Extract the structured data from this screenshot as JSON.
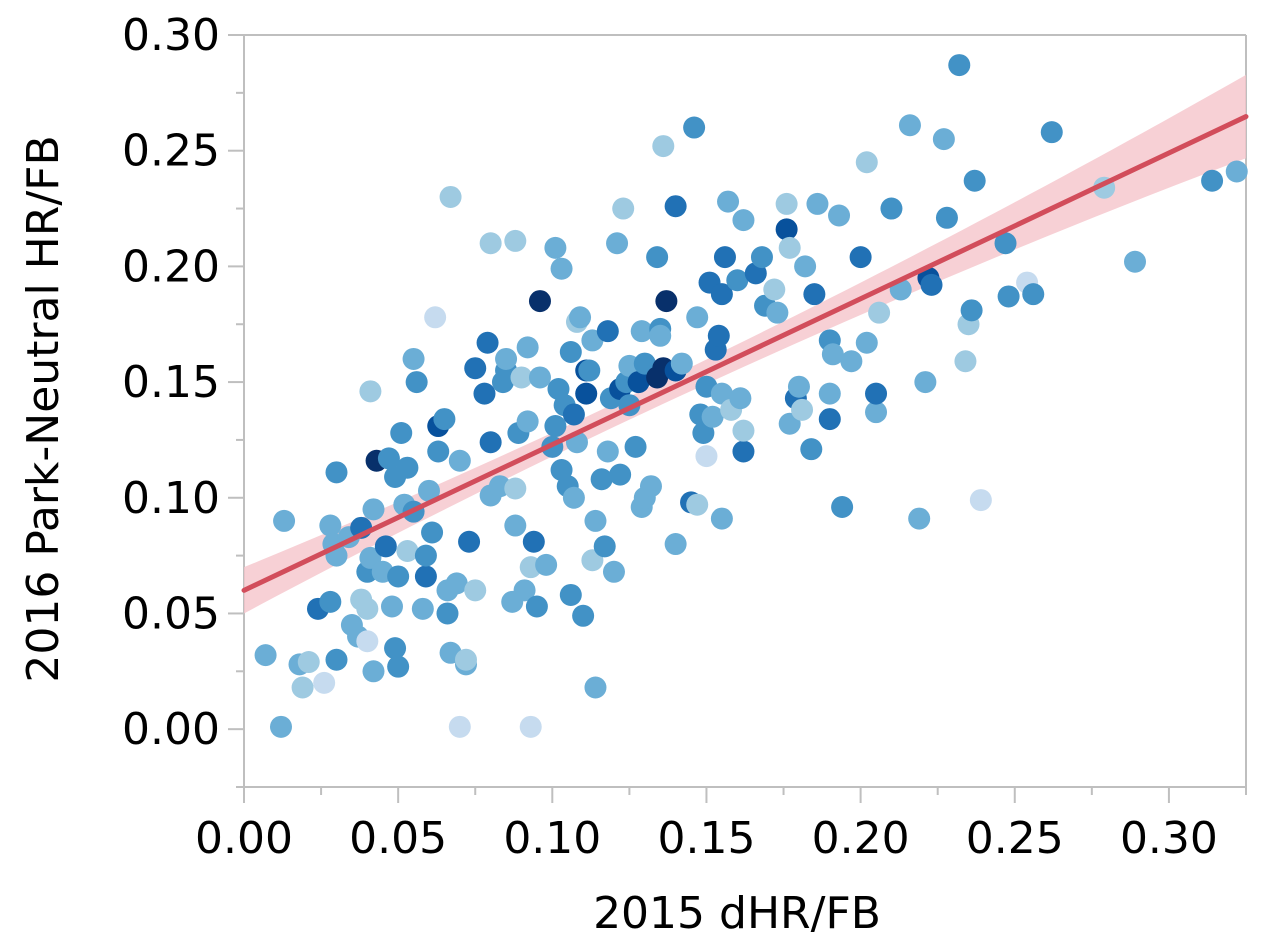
{
  "chart_data": {
    "type": "scatter",
    "xlabel": "2015 dHR/FB",
    "ylabel": "2016 Park-Neutral HR/FB",
    "xlim": [
      0.0,
      0.325
    ],
    "ylim": [
      -0.025,
      0.3
    ],
    "xticks": [
      "0.00",
      "0.05",
      "0.10",
      "0.15",
      "0.20",
      "0.25",
      "0.30"
    ],
    "yticks": [
      "0.00",
      "0.05",
      "0.10",
      "0.15",
      "0.20",
      "0.25",
      "0.30"
    ],
    "grid": false,
    "legend": "none",
    "colors": {
      "axis": "#bfbfbf",
      "fit_line": "#d24d5b",
      "confidence_band": "#f5c4cb",
      "point_scale": [
        "#deebf7",
        "#c6dbef",
        "#9ecae1",
        "#6baed6",
        "#4292c6",
        "#2171b5",
        "#08519c",
        "#08306b"
      ]
    },
    "fit": {
      "intercept": 0.06,
      "slope": 0.63,
      "band_halfwidth_at_x0": 0.01,
      "band_halfwidth_at_center": 0.005,
      "band_halfwidth_at_xmax": 0.018
    },
    "points": [
      {
        "x": 0.007,
        "y": 0.032,
        "c": 3
      },
      {
        "x": 0.012,
        "y": 0.001,
        "c": 3
      },
      {
        "x": 0.013,
        "y": 0.09,
        "c": 3
      },
      {
        "x": 0.018,
        "y": 0.028,
        "c": 3
      },
      {
        "x": 0.019,
        "y": 0.018,
        "c": 2
      },
      {
        "x": 0.021,
        "y": 0.029,
        "c": 2
      },
      {
        "x": 0.024,
        "y": 0.052,
        "c": 5
      },
      {
        "x": 0.026,
        "y": 0.02,
        "c": 1
      },
      {
        "x": 0.028,
        "y": 0.055,
        "c": 4
      },
      {
        "x": 0.028,
        "y": 0.088,
        "c": 3
      },
      {
        "x": 0.029,
        "y": 0.08,
        "c": 3
      },
      {
        "x": 0.03,
        "y": 0.03,
        "c": 4
      },
      {
        "x": 0.03,
        "y": 0.075,
        "c": 3
      },
      {
        "x": 0.03,
        "y": 0.111,
        "c": 4
      },
      {
        "x": 0.034,
        "y": 0.083,
        "c": 3
      },
      {
        "x": 0.035,
        "y": 0.045,
        "c": 3
      },
      {
        "x": 0.037,
        "y": 0.04,
        "c": 3
      },
      {
        "x": 0.038,
        "y": 0.056,
        "c": 2
      },
      {
        "x": 0.038,
        "y": 0.087,
        "c": 5
      },
      {
        "x": 0.04,
        "y": 0.038,
        "c": 1
      },
      {
        "x": 0.04,
        "y": 0.052,
        "c": 2
      },
      {
        "x": 0.04,
        "y": 0.068,
        "c": 4
      },
      {
        "x": 0.041,
        "y": 0.074,
        "c": 3
      },
      {
        "x": 0.041,
        "y": 0.146,
        "c": 2
      },
      {
        "x": 0.042,
        "y": 0.025,
        "c": 3
      },
      {
        "x": 0.042,
        "y": 0.095,
        "c": 3
      },
      {
        "x": 0.043,
        "y": 0.116,
        "c": 7
      },
      {
        "x": 0.045,
        "y": 0.068,
        "c": 3
      },
      {
        "x": 0.046,
        "y": 0.079,
        "c": 5
      },
      {
        "x": 0.047,
        "y": 0.117,
        "c": 4
      },
      {
        "x": 0.048,
        "y": 0.053,
        "c": 3
      },
      {
        "x": 0.049,
        "y": 0.035,
        "c": 4
      },
      {
        "x": 0.049,
        "y": 0.109,
        "c": 4
      },
      {
        "x": 0.05,
        "y": 0.066,
        "c": 4
      },
      {
        "x": 0.05,
        "y": 0.027,
        "c": 4
      },
      {
        "x": 0.051,
        "y": 0.128,
        "c": 4
      },
      {
        "x": 0.052,
        "y": 0.097,
        "c": 3
      },
      {
        "x": 0.053,
        "y": 0.077,
        "c": 2
      },
      {
        "x": 0.053,
        "y": 0.113,
        "c": 4
      },
      {
        "x": 0.055,
        "y": 0.094,
        "c": 4
      },
      {
        "x": 0.055,
        "y": 0.16,
        "c": 3
      },
      {
        "x": 0.056,
        "y": 0.15,
        "c": 4
      },
      {
        "x": 0.058,
        "y": 0.052,
        "c": 3
      },
      {
        "x": 0.059,
        "y": 0.066,
        "c": 5
      },
      {
        "x": 0.059,
        "y": 0.075,
        "c": 4
      },
      {
        "x": 0.06,
        "y": 0.103,
        "c": 3
      },
      {
        "x": 0.061,
        "y": 0.085,
        "c": 4
      },
      {
        "x": 0.062,
        "y": 0.178,
        "c": 1
      },
      {
        "x": 0.063,
        "y": 0.131,
        "c": 6
      },
      {
        "x": 0.063,
        "y": 0.12,
        "c": 4
      },
      {
        "x": 0.065,
        "y": 0.134,
        "c": 4
      },
      {
        "x": 0.066,
        "y": 0.05,
        "c": 4
      },
      {
        "x": 0.066,
        "y": 0.06,
        "c": 3
      },
      {
        "x": 0.067,
        "y": 0.033,
        "c": 3
      },
      {
        "x": 0.067,
        "y": 0.23,
        "c": 2
      },
      {
        "x": 0.069,
        "y": 0.063,
        "c": 3
      },
      {
        "x": 0.07,
        "y": 0.001,
        "c": 1
      },
      {
        "x": 0.07,
        "y": 0.116,
        "c": 3
      },
      {
        "x": 0.072,
        "y": 0.028,
        "c": 3
      },
      {
        "x": 0.072,
        "y": 0.03,
        "c": 2
      },
      {
        "x": 0.073,
        "y": 0.081,
        "c": 5
      },
      {
        "x": 0.075,
        "y": 0.156,
        "c": 5
      },
      {
        "x": 0.075,
        "y": 0.06,
        "c": 2
      },
      {
        "x": 0.078,
        "y": 0.145,
        "c": 5
      },
      {
        "x": 0.079,
        "y": 0.167,
        "c": 5
      },
      {
        "x": 0.08,
        "y": 0.124,
        "c": 5
      },
      {
        "x": 0.08,
        "y": 0.101,
        "c": 3
      },
      {
        "x": 0.08,
        "y": 0.21,
        "c": 2
      },
      {
        "x": 0.083,
        "y": 0.105,
        "c": 3
      },
      {
        "x": 0.084,
        "y": 0.15,
        "c": 4
      },
      {
        "x": 0.085,
        "y": 0.155,
        "c": 4
      },
      {
        "x": 0.085,
        "y": 0.16,
        "c": 3
      },
      {
        "x": 0.087,
        "y": 0.055,
        "c": 3
      },
      {
        "x": 0.088,
        "y": 0.088,
        "c": 3
      },
      {
        "x": 0.088,
        "y": 0.211,
        "c": 2
      },
      {
        "x": 0.088,
        "y": 0.104,
        "c": 2
      },
      {
        "x": 0.089,
        "y": 0.128,
        "c": 4
      },
      {
        "x": 0.09,
        "y": 0.152,
        "c": 2
      },
      {
        "x": 0.091,
        "y": 0.06,
        "c": 3
      },
      {
        "x": 0.092,
        "y": 0.133,
        "c": 3
      },
      {
        "x": 0.092,
        "y": 0.165,
        "c": 3
      },
      {
        "x": 0.093,
        "y": 0.07,
        "c": 2
      },
      {
        "x": 0.093,
        "y": 0.001,
        "c": 1
      },
      {
        "x": 0.094,
        "y": 0.081,
        "c": 5
      },
      {
        "x": 0.095,
        "y": 0.053,
        "c": 4
      },
      {
        "x": 0.096,
        "y": 0.185,
        "c": 7
      },
      {
        "x": 0.096,
        "y": 0.152,
        "c": 3
      },
      {
        "x": 0.098,
        "y": 0.071,
        "c": 3
      },
      {
        "x": 0.1,
        "y": 0.122,
        "c": 4
      },
      {
        "x": 0.101,
        "y": 0.131,
        "c": 4
      },
      {
        "x": 0.101,
        "y": 0.208,
        "c": 3
      },
      {
        "x": 0.102,
        "y": 0.147,
        "c": 4
      },
      {
        "x": 0.103,
        "y": 0.199,
        "c": 3
      },
      {
        "x": 0.103,
        "y": 0.112,
        "c": 4
      },
      {
        "x": 0.104,
        "y": 0.14,
        "c": 4
      },
      {
        "x": 0.105,
        "y": 0.105,
        "c": 4
      },
      {
        "x": 0.106,
        "y": 0.058,
        "c": 4
      },
      {
        "x": 0.106,
        "y": 0.163,
        "c": 4
      },
      {
        "x": 0.107,
        "y": 0.136,
        "c": 5
      },
      {
        "x": 0.107,
        "y": 0.1,
        "c": 3
      },
      {
        "x": 0.108,
        "y": 0.176,
        "c": 2
      },
      {
        "x": 0.108,
        "y": 0.124,
        "c": 3
      },
      {
        "x": 0.109,
        "y": 0.178,
        "c": 3
      },
      {
        "x": 0.11,
        "y": 0.049,
        "c": 4
      },
      {
        "x": 0.111,
        "y": 0.145,
        "c": 6
      },
      {
        "x": 0.111,
        "y": 0.155,
        "c": 6
      },
      {
        "x": 0.112,
        "y": 0.155,
        "c": 4
      },
      {
        "x": 0.113,
        "y": 0.168,
        "c": 3
      },
      {
        "x": 0.113,
        "y": 0.073,
        "c": 2
      },
      {
        "x": 0.114,
        "y": 0.018,
        "c": 3
      },
      {
        "x": 0.114,
        "y": 0.09,
        "c": 3
      },
      {
        "x": 0.116,
        "y": 0.108,
        "c": 4
      },
      {
        "x": 0.117,
        "y": 0.079,
        "c": 4
      },
      {
        "x": 0.118,
        "y": 0.172,
        "c": 5
      },
      {
        "x": 0.118,
        "y": 0.12,
        "c": 3
      },
      {
        "x": 0.119,
        "y": 0.143,
        "c": 4
      },
      {
        "x": 0.12,
        "y": 0.068,
        "c": 3
      },
      {
        "x": 0.121,
        "y": 0.21,
        "c": 3
      },
      {
        "x": 0.122,
        "y": 0.147,
        "c": 6
      },
      {
        "x": 0.122,
        "y": 0.11,
        "c": 4
      },
      {
        "x": 0.123,
        "y": 0.225,
        "c": 2
      },
      {
        "x": 0.124,
        "y": 0.15,
        "c": 4
      },
      {
        "x": 0.125,
        "y": 0.14,
        "c": 4
      },
      {
        "x": 0.125,
        "y": 0.157,
        "c": 3
      },
      {
        "x": 0.127,
        "y": 0.122,
        "c": 4
      },
      {
        "x": 0.128,
        "y": 0.15,
        "c": 6
      },
      {
        "x": 0.129,
        "y": 0.172,
        "c": 3
      },
      {
        "x": 0.129,
        "y": 0.096,
        "c": 3
      },
      {
        "x": 0.13,
        "y": 0.1,
        "c": 3
      },
      {
        "x": 0.13,
        "y": 0.158,
        "c": 4
      },
      {
        "x": 0.132,
        "y": 0.105,
        "c": 3
      },
      {
        "x": 0.134,
        "y": 0.152,
        "c": 7
      },
      {
        "x": 0.134,
        "y": 0.204,
        "c": 4
      },
      {
        "x": 0.135,
        "y": 0.173,
        "c": 4
      },
      {
        "x": 0.135,
        "y": 0.17,
        "c": 3
      },
      {
        "x": 0.136,
        "y": 0.252,
        "c": 2
      },
      {
        "x": 0.136,
        "y": 0.156,
        "c": 7
      },
      {
        "x": 0.137,
        "y": 0.185,
        "c": 7
      },
      {
        "x": 0.14,
        "y": 0.226,
        "c": 5
      },
      {
        "x": 0.14,
        "y": 0.155,
        "c": 6
      },
      {
        "x": 0.14,
        "y": 0.08,
        "c": 3
      },
      {
        "x": 0.142,
        "y": 0.158,
        "c": 3
      },
      {
        "x": 0.145,
        "y": 0.098,
        "c": 5
      },
      {
        "x": 0.146,
        "y": 0.26,
        "c": 4
      },
      {
        "x": 0.147,
        "y": 0.178,
        "c": 3
      },
      {
        "x": 0.147,
        "y": 0.097,
        "c": 2
      },
      {
        "x": 0.148,
        "y": 0.136,
        "c": 4
      },
      {
        "x": 0.149,
        "y": 0.128,
        "c": 4
      },
      {
        "x": 0.15,
        "y": 0.148,
        "c": 4
      },
      {
        "x": 0.15,
        "y": 0.118,
        "c": 1
      },
      {
        "x": 0.151,
        "y": 0.193,
        "c": 5
      },
      {
        "x": 0.152,
        "y": 0.135,
        "c": 3
      },
      {
        "x": 0.153,
        "y": 0.164,
        "c": 5
      },
      {
        "x": 0.154,
        "y": 0.17,
        "c": 5
      },
      {
        "x": 0.155,
        "y": 0.188,
        "c": 5
      },
      {
        "x": 0.155,
        "y": 0.145,
        "c": 3
      },
      {
        "x": 0.155,
        "y": 0.091,
        "c": 3
      },
      {
        "x": 0.156,
        "y": 0.204,
        "c": 5
      },
      {
        "x": 0.157,
        "y": 0.228,
        "c": 3
      },
      {
        "x": 0.158,
        "y": 0.138,
        "c": 2
      },
      {
        "x": 0.16,
        "y": 0.194,
        "c": 4
      },
      {
        "x": 0.161,
        "y": 0.143,
        "c": 3
      },
      {
        "x": 0.162,
        "y": 0.12,
        "c": 5
      },
      {
        "x": 0.162,
        "y": 0.129,
        "c": 2
      },
      {
        "x": 0.162,
        "y": 0.22,
        "c": 3
      },
      {
        "x": 0.166,
        "y": 0.197,
        "c": 5
      },
      {
        "x": 0.168,
        "y": 0.204,
        "c": 4
      },
      {
        "x": 0.169,
        "y": 0.183,
        "c": 4
      },
      {
        "x": 0.172,
        "y": 0.19,
        "c": 2
      },
      {
        "x": 0.173,
        "y": 0.18,
        "c": 3
      },
      {
        "x": 0.176,
        "y": 0.216,
        "c": 6
      },
      {
        "x": 0.176,
        "y": 0.227,
        "c": 2
      },
      {
        "x": 0.177,
        "y": 0.132,
        "c": 3
      },
      {
        "x": 0.177,
        "y": 0.208,
        "c": 2
      },
      {
        "x": 0.179,
        "y": 0.143,
        "c": 5
      },
      {
        "x": 0.18,
        "y": 0.148,
        "c": 3
      },
      {
        "x": 0.181,
        "y": 0.138,
        "c": 2
      },
      {
        "x": 0.182,
        "y": 0.2,
        "c": 3
      },
      {
        "x": 0.184,
        "y": 0.121,
        "c": 4
      },
      {
        "x": 0.185,
        "y": 0.188,
        "c": 5
      },
      {
        "x": 0.186,
        "y": 0.227,
        "c": 3
      },
      {
        "x": 0.19,
        "y": 0.168,
        "c": 4
      },
      {
        "x": 0.19,
        "y": 0.145,
        "c": 3
      },
      {
        "x": 0.19,
        "y": 0.134,
        "c": 5
      },
      {
        "x": 0.191,
        "y": 0.162,
        "c": 3
      },
      {
        "x": 0.193,
        "y": 0.222,
        "c": 3
      },
      {
        "x": 0.194,
        "y": 0.096,
        "c": 4
      },
      {
        "x": 0.197,
        "y": 0.159,
        "c": 3
      },
      {
        "x": 0.2,
        "y": 0.204,
        "c": 5
      },
      {
        "x": 0.202,
        "y": 0.167,
        "c": 3
      },
      {
        "x": 0.202,
        "y": 0.245,
        "c": 2
      },
      {
        "x": 0.205,
        "y": 0.137,
        "c": 3
      },
      {
        "x": 0.205,
        "y": 0.145,
        "c": 5
      },
      {
        "x": 0.206,
        "y": 0.18,
        "c": 2
      },
      {
        "x": 0.21,
        "y": 0.225,
        "c": 4
      },
      {
        "x": 0.213,
        "y": 0.19,
        "c": 3
      },
      {
        "x": 0.216,
        "y": 0.261,
        "c": 3
      },
      {
        "x": 0.219,
        "y": 0.091,
        "c": 3
      },
      {
        "x": 0.221,
        "y": 0.15,
        "c": 3
      },
      {
        "x": 0.222,
        "y": 0.195,
        "c": 6
      },
      {
        "x": 0.223,
        "y": 0.192,
        "c": 5
      },
      {
        "x": 0.227,
        "y": 0.255,
        "c": 3
      },
      {
        "x": 0.228,
        "y": 0.221,
        "c": 4
      },
      {
        "x": 0.232,
        "y": 0.287,
        "c": 4
      },
      {
        "x": 0.234,
        "y": 0.159,
        "c": 2
      },
      {
        "x": 0.235,
        "y": 0.175,
        "c": 2
      },
      {
        "x": 0.236,
        "y": 0.181,
        "c": 4
      },
      {
        "x": 0.237,
        "y": 0.237,
        "c": 4
      },
      {
        "x": 0.239,
        "y": 0.099,
        "c": 1
      },
      {
        "x": 0.247,
        "y": 0.21,
        "c": 4
      },
      {
        "x": 0.248,
        "y": 0.187,
        "c": 4
      },
      {
        "x": 0.254,
        "y": 0.193,
        "c": 1
      },
      {
        "x": 0.256,
        "y": 0.188,
        "c": 4
      },
      {
        "x": 0.262,
        "y": 0.258,
        "c": 4
      },
      {
        "x": 0.279,
        "y": 0.234,
        "c": 2
      },
      {
        "x": 0.289,
        "y": 0.202,
        "c": 3
      },
      {
        "x": 0.314,
        "y": 0.237,
        "c": 4
      },
      {
        "x": 0.322,
        "y": 0.241,
        "c": 3
      }
    ]
  }
}
